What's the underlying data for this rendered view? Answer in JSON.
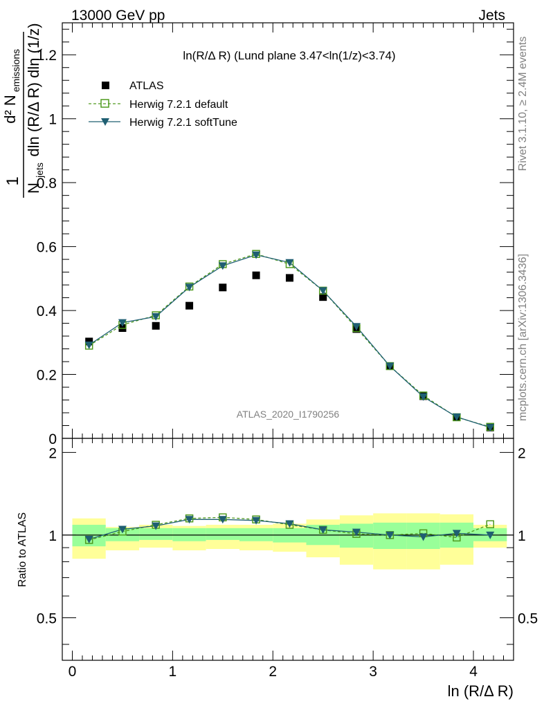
{
  "header": {
    "left": "13000 GeV pp",
    "right": "Jets"
  },
  "side_labels": {
    "rivet": "Rivet 3.1.10, ≥ 2.4M events",
    "mcplots": "mcplots.cern.ch [arXiv:1306.3436]"
  },
  "colors": {
    "atlas": "#000000",
    "default": "#4f9a1e",
    "softtune": "#1f5f72",
    "band_inner": "#99ff99",
    "band_outer": "#ffff99"
  },
  "chart_data": [
    {
      "type": "line",
      "title": "ln(R/Δ R) (Lund plane 3.47<ln(1/z)<3.74)",
      "ylabel": "1/N_jets d²N_emissions / dln(R/ΔR) dln(1/z)",
      "ylabel_parts": {
        "one": "1",
        "num": "d² N",
        "num_sub": "emissions",
        "den": "N",
        "den_sub": "jets",
        "den_rest": "dln (R/Δ R) dln (1/z)"
      },
      "xlim": [
        -0.1,
        4.4
      ],
      "ylim": [
        0,
        1.3
      ],
      "yticks": [
        0,
        0.2,
        0.4,
        0.6,
        0.8,
        1,
        1.2
      ],
      "ytick_labels": [
        "0",
        "0.2",
        "0.4",
        "0.6",
        "0.8",
        "1",
        "1.2"
      ],
      "watermark": "ATLAS_2020_I1790256",
      "x": [
        0.167,
        0.5,
        0.833,
        1.167,
        1.5,
        1.833,
        2.167,
        2.5,
        2.833,
        3.167,
        3.5,
        3.833,
        4.167
      ],
      "series": [
        {
          "name": "ATLAS",
          "marker": "square",
          "values": [
            0.303,
            0.345,
            0.352,
            0.415,
            0.472,
            0.51,
            0.502,
            0.442,
            0.342,
            0.226,
            0.132,
            0.066,
            0.034
          ]
        },
        {
          "name": "Herwig 7.2.1 default",
          "marker": "open-square",
          "line": "dashed",
          "values": [
            0.29,
            0.355,
            0.385,
            0.475,
            0.545,
            0.577,
            0.545,
            0.462,
            0.345,
            0.226,
            0.134,
            0.066,
            0.036
          ]
        },
        {
          "name": "Herwig 7.2.1 softTune",
          "marker": "triangle-down",
          "line": "solid",
          "values": [
            0.292,
            0.362,
            0.381,
            0.473,
            0.54,
            0.574,
            0.55,
            0.462,
            0.35,
            0.226,
            0.13,
            0.067,
            0.034
          ]
        }
      ],
      "legend": {
        "placement": "top-left",
        "entries": [
          "ATLAS",
          "Herwig 7.2.1 default",
          "Herwig 7.2.1 softTune"
        ]
      }
    },
    {
      "type": "line",
      "title": "",
      "xlabel": "ln (R/Δ R)",
      "ylabel": "Ratio to ATLAS",
      "xlim": [
        -0.1,
        4.4
      ],
      "ylim": [
        0.35,
        2.25
      ],
      "yticks": [
        0.5,
        1,
        2
      ],
      "ytick_labels": [
        "0.5",
        "1",
        "2"
      ],
      "xticks": [
        0,
        1,
        2,
        3,
        4
      ],
      "xtick_labels": [
        "0",
        "1",
        "2",
        "3",
        "4"
      ],
      "bin_edges": [
        0,
        0.333,
        0.667,
        1,
        1.333,
        1.667,
        2,
        2.333,
        2.667,
        3,
        3.333,
        3.667,
        4,
        4.333
      ],
      "band_inner": {
        "low": [
          0.91,
          0.95,
          0.96,
          0.95,
          0.96,
          0.95,
          0.94,
          0.92,
          0.9,
          0.89,
          0.89,
          0.9,
          0.95
        ],
        "high": [
          1.09,
          1.06,
          1.06,
          1.06,
          1.06,
          1.06,
          1.06,
          1.09,
          1.1,
          1.11,
          1.11,
          1.11,
          1.06
        ]
      },
      "band_outer": {
        "low": [
          0.82,
          0.88,
          0.9,
          0.88,
          0.89,
          0.88,
          0.87,
          0.83,
          0.78,
          0.75,
          0.75,
          0.78,
          0.9
        ]
      },
      "band_outer_high": [
        1.15,
        1.07,
        1.09,
        1.08,
        1.09,
        1.09,
        1.1,
        1.14,
        1.18,
        1.2,
        1.2,
        1.19,
        1.09
      ],
      "x": [
        0.167,
        0.5,
        0.833,
        1.167,
        1.5,
        1.833,
        2.167,
        2.5,
        2.833,
        3.167,
        3.5,
        3.833,
        4.167
      ],
      "series": [
        {
          "name": "Herwig 7.2.1 default",
          "marker": "open-square",
          "line": "dashed",
          "values": [
            0.96,
            1.03,
            1.09,
            1.15,
            1.16,
            1.14,
            1.09,
            1.045,
            1.01,
            1.0,
            1.015,
            0.98,
            1.095
          ]
        },
        {
          "name": "Herwig 7.2.1 softTune",
          "marker": "triangle-down",
          "line": "solid",
          "values": [
            0.965,
            1.05,
            1.08,
            1.14,
            1.14,
            1.13,
            1.1,
            1.045,
            1.025,
            1.0,
            0.985,
            1.015,
            1.0
          ]
        }
      ]
    }
  ]
}
